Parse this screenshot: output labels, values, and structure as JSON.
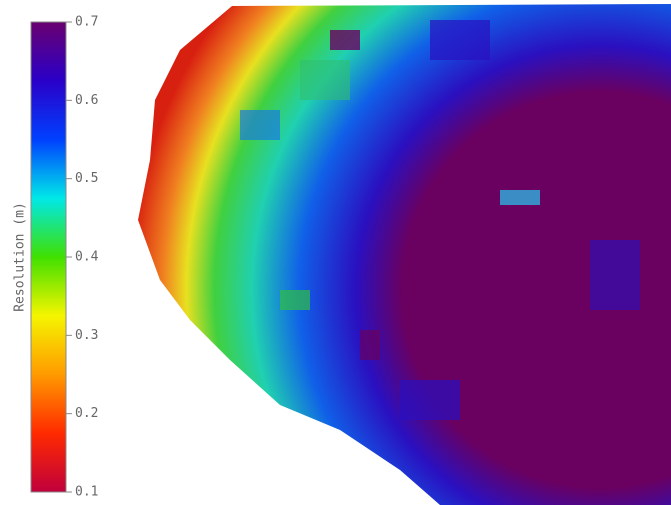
{
  "chart_data": {
    "type": "colorbar-map",
    "colorbar_label": "Resolution (m)",
    "clim": [
      0.1,
      0.7
    ],
    "ticks": [
      0.1,
      0.2,
      0.3,
      0.4,
      0.5,
      0.6,
      0.7
    ],
    "colormap": [
      "#c0003c",
      "#ff2a00",
      "#ff9a00",
      "#f5f500",
      "#40e000",
      "#00e8e8",
      "#0040ff",
      "#2a00c8",
      "#6a0070"
    ]
  }
}
